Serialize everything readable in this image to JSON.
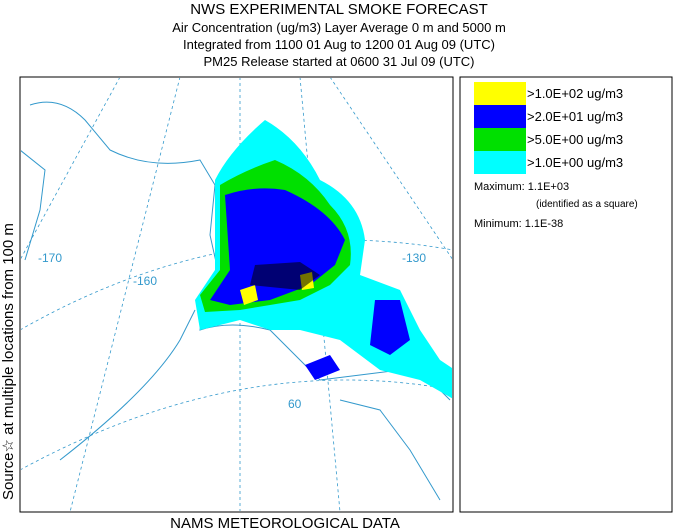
{
  "header": {
    "title": "NWS EXPERIMENTAL SMOKE FORECAST",
    "lines": [
      "Air Concentration (ug/m3) Layer Average    0 m and  5000 m",
      "Integrated from 1100 01 Aug to 1200 01 Aug 09 (UTC)",
      "PM25 Release started at 0600 31 Jul 09 (UTC)"
    ]
  },
  "side_label": "Source☆ at multiple locations   from  100 m",
  "footer": "NAMS METEOROLOGICAL DATA",
  "legend": {
    "items": [
      {
        "label": ">1.0E+02 ug/m3",
        "color": "#ffff00"
      },
      {
        "label": ">2.0E+01 ug/m3",
        "color": "#0000ff"
      },
      {
        "label": ">5.0E+00 ug/m3",
        "color": "#00e000"
      },
      {
        "label": ">1.0E+00 ug/m3",
        "color": "#00ffff"
      }
    ],
    "maximum": "Maximum: 1.1E+03",
    "maximum_note": "(identified as a square)",
    "minimum": "Minimum: 1.1E-38"
  },
  "map": {
    "labels": [
      "-170",
      "-160",
      "-130",
      "60"
    ]
  }
}
